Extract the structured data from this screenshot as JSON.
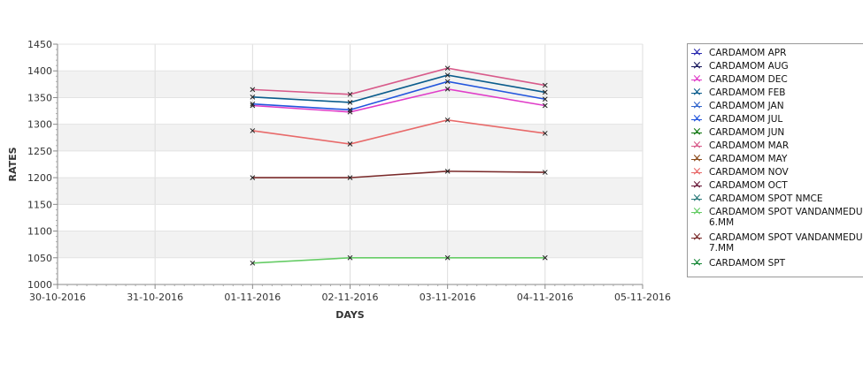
{
  "chart_data": {
    "type": "line",
    "title": "",
    "xlabel": "DAYS",
    "ylabel": "RATES",
    "x_ticks": [
      "30-10-2016",
      "31-10-2016",
      "01-11-2016",
      "02-11-2016",
      "03-11-2016",
      "04-11-2016",
      "05-11-2016"
    ],
    "x": [
      "01-11-2016",
      "02-11-2016",
      "03-11-2016",
      "04-11-2016"
    ],
    "ylim": [
      1000,
      1450
    ],
    "y_ticks": [
      1000,
      1050,
      1100,
      1150,
      1200,
      1250,
      1300,
      1350,
      1400,
      1450
    ],
    "grid": "horizontal",
    "banding": "alternating grey/white bands",
    "legend_position": "right",
    "series": [
      {
        "name": "CARDAMOM APR",
        "color": "#2a2ab0",
        "values": [
          null,
          null,
          null,
          null
        ]
      },
      {
        "name": "CARDAMOM AUG",
        "color": "#1a1a5e",
        "values": [
          null,
          null,
          null,
          null
        ]
      },
      {
        "name": "CARDAMOM DEC",
        "color": "#e03cc8",
        "values": [
          1335,
          1323,
          1366,
          1335
        ]
      },
      {
        "name": "CARDAMOM FEB",
        "color": "#0a5c8c",
        "values": [
          1351,
          1341,
          1392,
          1360
        ]
      },
      {
        "name": "CARDAMOM JAN",
        "color": "#3366cc",
        "values": [
          null,
          null,
          null,
          null
        ]
      },
      {
        "name": "CARDAMOM JUL",
        "color": "#2255dd",
        "values": [
          1338,
          1327,
          1380,
          1347
        ]
      },
      {
        "name": "CARDAMOM JUN",
        "color": "#117711",
        "values": [
          null,
          null,
          null,
          null
        ]
      },
      {
        "name": "CARDAMOM MAR",
        "color": "#d85a8a",
        "values": [
          1365,
          1356,
          1405,
          1373
        ]
      },
      {
        "name": "CARDAMOM MAY",
        "color": "#8a4a1a",
        "values": [
          null,
          null,
          null,
          null
        ]
      },
      {
        "name": "CARDAMOM NOV",
        "color": "#e86a6a",
        "values": [
          1288,
          1263,
          1308,
          1283
        ]
      },
      {
        "name": "CARDAMOM OCT",
        "color": "#6a1a3a",
        "values": [
          null,
          null,
          null,
          null
        ]
      },
      {
        "name": "CARDAMOM SPOT NMCE",
        "color": "#2a7a7a",
        "values": [
          null,
          null,
          null,
          null
        ]
      },
      {
        "name": "CARDAMOM SPOT VANDANMEDU\n6.MM",
        "color": "#66cc66",
        "values": [
          1040,
          1050,
          1050,
          1050
        ]
      },
      {
        "name": "CARDAMOM SPOT VANDANMEDU\n7.MM",
        "color": "#7a2a2a",
        "values": [
          1200,
          1200,
          1212,
          1210
        ]
      },
      {
        "name": "CARDAMOM SPT",
        "color": "#1a8a3a",
        "values": [
          null,
          null,
          null,
          null
        ]
      }
    ]
  }
}
